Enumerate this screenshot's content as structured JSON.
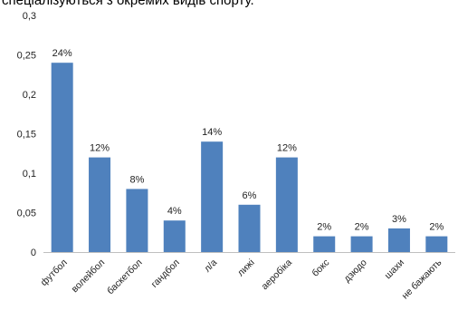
{
  "chart_data": {
    "type": "bar",
    "title": "спеціалізуються з окремих видів спорту.",
    "categories": [
      "футбол",
      "волейбол",
      "баскетбол",
      "гандбол",
      "л/а",
      "лижі",
      "аеробіка",
      "бокс",
      "дзюдо",
      "шахи",
      "не бажають"
    ],
    "values": [
      0.24,
      0.12,
      0.08,
      0.04,
      0.14,
      0.06,
      0.12,
      0.02,
      0.02,
      0.03,
      0.02
    ],
    "data_labels": [
      "24%",
      "12%",
      "8%",
      "4%",
      "14%",
      "6%",
      "12%",
      "2%",
      "2%",
      "3%",
      "2%"
    ],
    "y_ticks": [
      "0",
      "0,05",
      "0,1",
      "0,15",
      "0,2",
      "0,25",
      "0,3"
    ],
    "ylim": [
      0,
      0.3
    ],
    "grid": false,
    "legend": "none",
    "bar_color": "#4F81BD"
  }
}
